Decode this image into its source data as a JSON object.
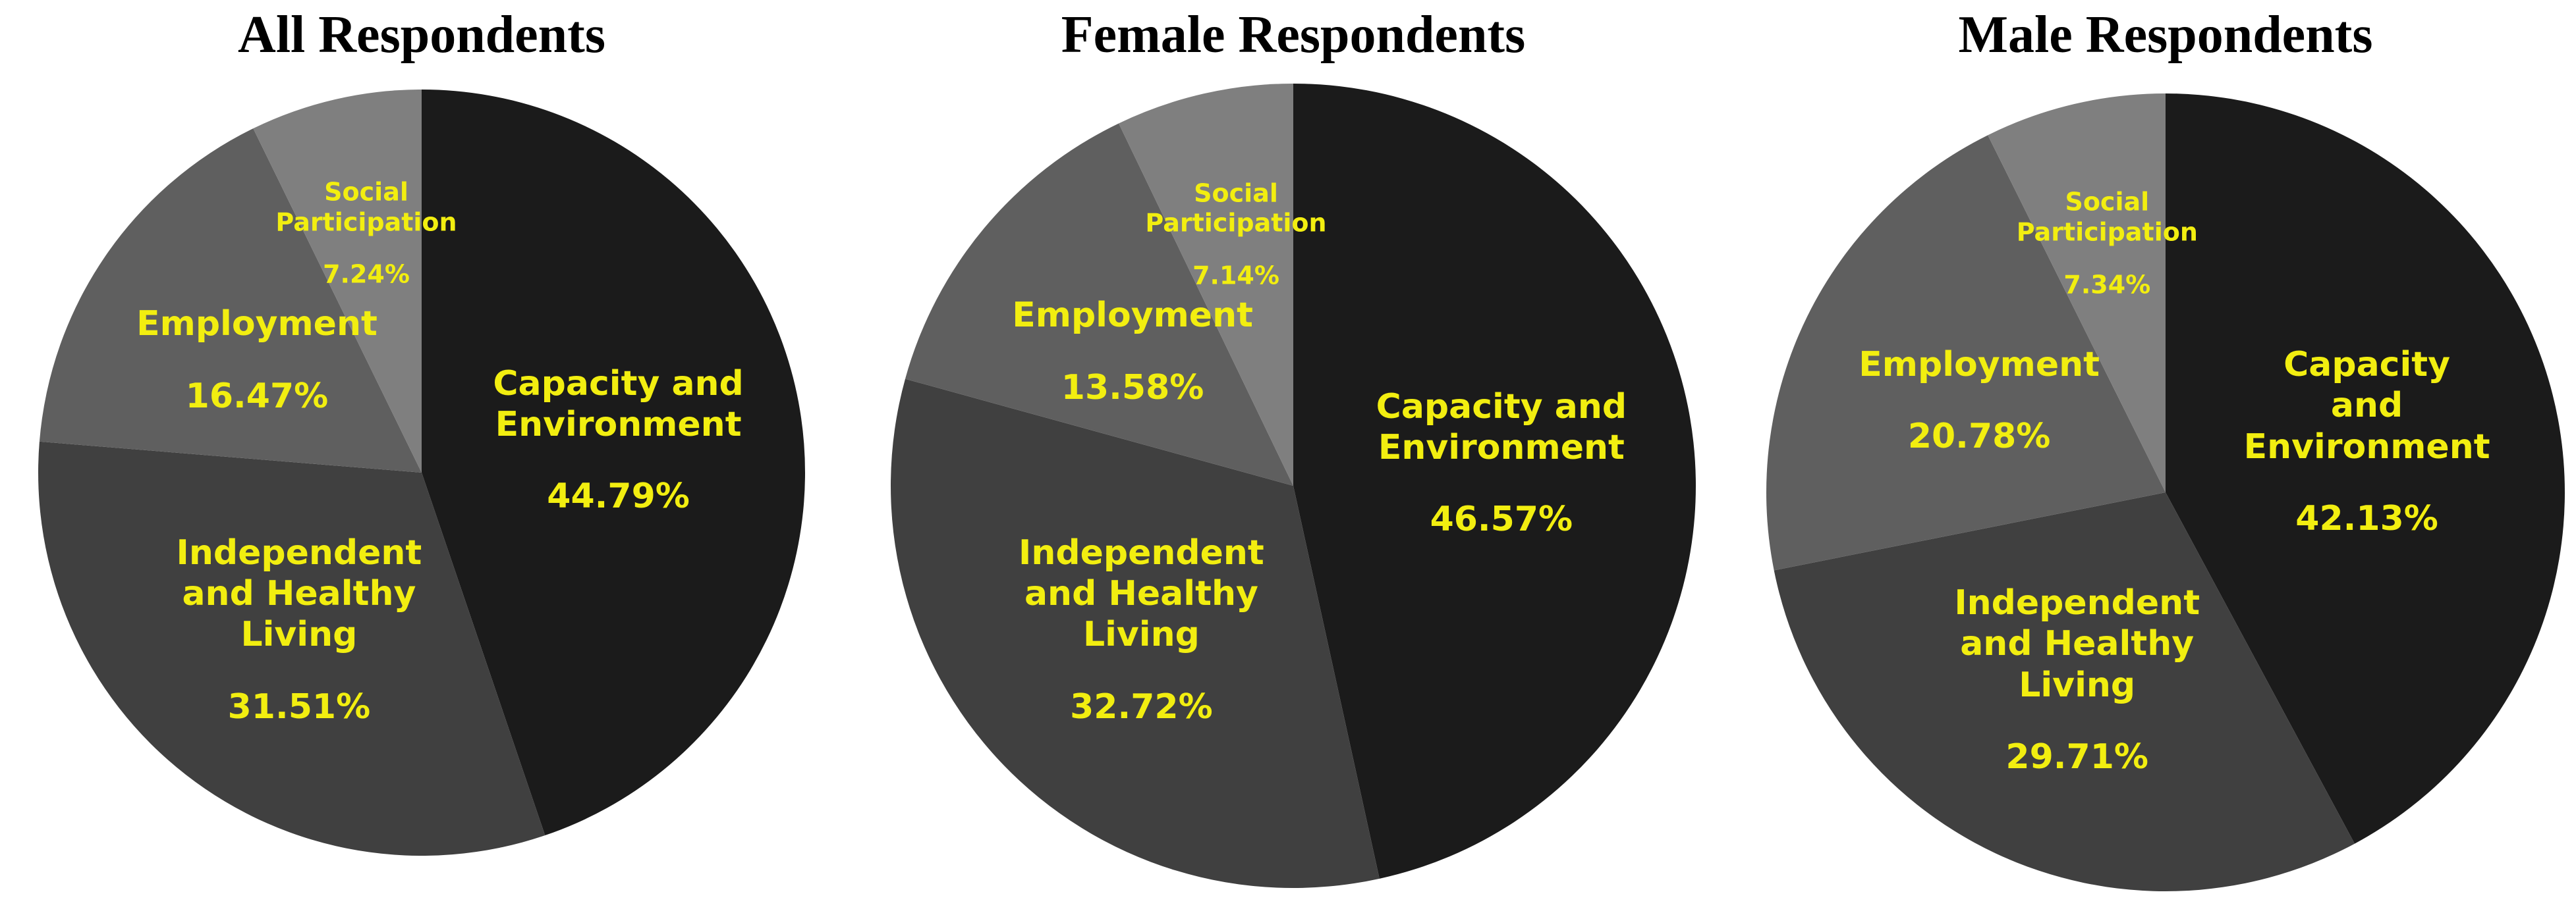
{
  "chart_data": [
    {
      "type": "pie",
      "title": "All Respondents",
      "categories": [
        "Capacity and Environment",
        "Independent and Healthy Living",
        "Employment",
        "Social Participation"
      ],
      "values": [
        44.79,
        31.51,
        16.47,
        7.24
      ],
      "value_labels": [
        "44.79%",
        "31.51%",
        "16.47%",
        "7.24%"
      ],
      "colors": [
        "#1b1b1b",
        "#404040",
        "#5f5f5f",
        "#7f7f7f"
      ]
    },
    {
      "type": "pie",
      "title": "Female Respondents",
      "categories": [
        "Capacity and Environment",
        "Independent and Healthy Living",
        "Employment",
        "Social Participation"
      ],
      "values": [
        46.57,
        32.72,
        13.58,
        7.14
      ],
      "value_labels": [
        "46.57%",
        "32.72%",
        "13.58%",
        "7.14%"
      ],
      "colors": [
        "#1b1b1b",
        "#404040",
        "#5f5f5f",
        "#7f7f7f"
      ]
    },
    {
      "type": "pie",
      "title": "Male Respondents",
      "categories": [
        "Capacity and Environment",
        "Independent and Healthy Living",
        "Employment",
        "Social Participation"
      ],
      "values": [
        42.13,
        29.71,
        20.78,
        7.34
      ],
      "value_labels": [
        "42.13%",
        "29.71%",
        "20.78%",
        "7.34%"
      ],
      "colors": [
        "#1b1b1b",
        "#404040",
        "#5f5f5f",
        "#7f7f7f"
      ]
    }
  ]
}
